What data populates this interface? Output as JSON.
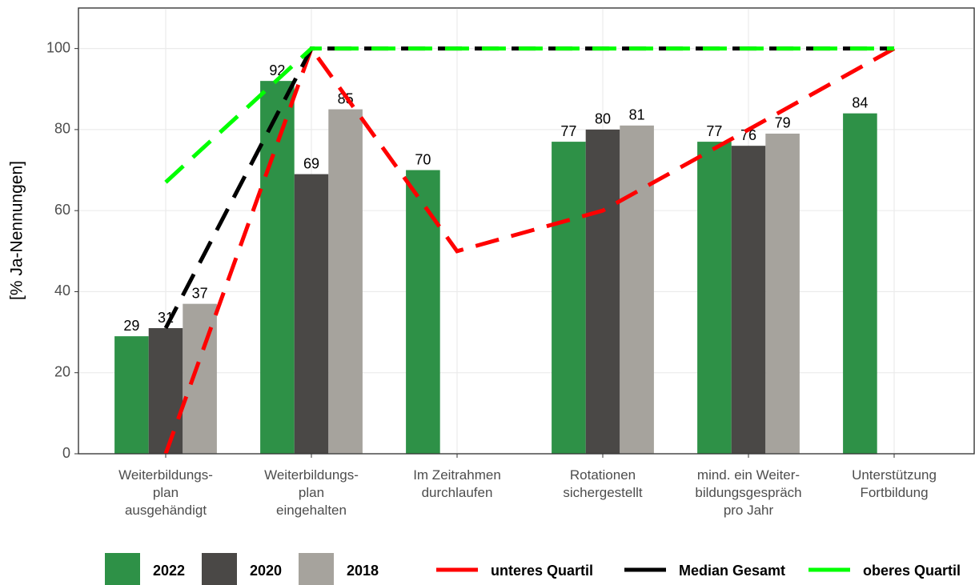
{
  "chart_data": {
    "type": "bar",
    "ylabel": "[% Ja-Nennungen]",
    "categories": [
      "Weiterbildungs-\nplan\nausgehändigt",
      "Weiterbildungs-\nplan\neingehalten",
      "Im Zeitrahmen\ndurchlaufen",
      "Rotationen\nsichergestellt",
      "mind. ein Weiter-\nbildungsgespräch\npro Jahr",
      "Unterstützung\nFortbildung"
    ],
    "series": [
      {
        "name": "2022",
        "color": "#2e9147",
        "values": [
          29,
          92,
          70,
          77,
          77,
          84
        ]
      },
      {
        "name": "2020",
        "color": "#4a4846",
        "values": [
          31,
          69,
          null,
          80,
          76,
          null
        ]
      },
      {
        "name": "2018",
        "color": "#a6a39d",
        "values": [
          37,
          85,
          null,
          81,
          79,
          null
        ]
      }
    ],
    "lines": [
      {
        "name": "unteres Quartil",
        "color": "#ff0000",
        "values": [
          0,
          100,
          50,
          60,
          80,
          100
        ]
      },
      {
        "name": "Median Gesamt",
        "color": "#000000",
        "values": [
          31,
          100,
          100,
          100,
          100,
          100
        ]
      },
      {
        "name": "oberes Quartil",
        "color": "#00ff00",
        "values": [
          67,
          100,
          100,
          100,
          100,
          100
        ]
      }
    ],
    "ylim": [
      0,
      110
    ],
    "yticks": [
      0,
      20,
      40,
      60,
      80,
      100
    ],
    "grid": true,
    "legend": "bottom"
  }
}
